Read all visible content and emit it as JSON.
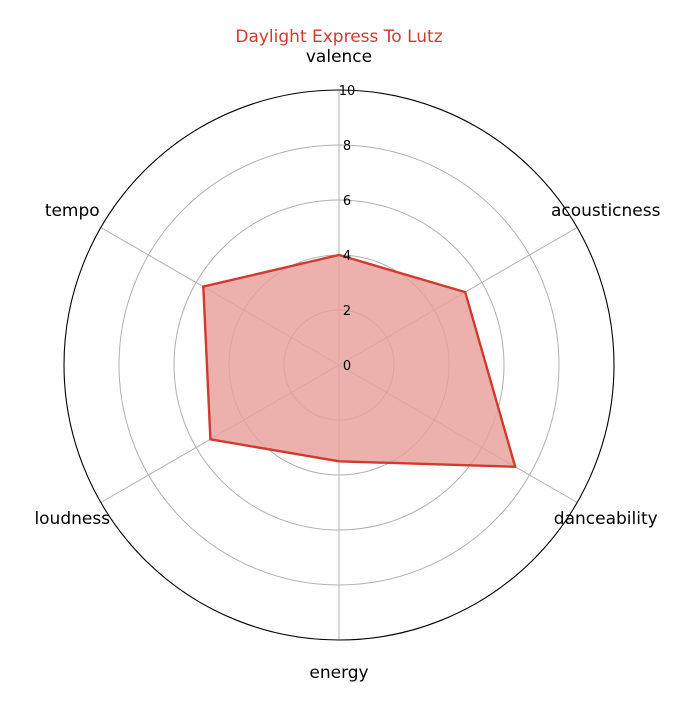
{
  "chart_data": {
    "type": "radar",
    "title": "Daylight Express To Lutz",
    "categories": [
      "valence",
      "acousticness",
      "danceability",
      "energy",
      "loudness",
      "tempo"
    ],
    "series": [
      {
        "values": [
          4.0,
          5.3,
          7.4,
          3.5,
          5.4,
          5.7
        ]
      }
    ],
    "rlim": [
      0,
      10
    ],
    "rticks": [
      "0",
      "2",
      "4",
      "6",
      "8",
      "10"
    ],
    "grid": true,
    "colors": {
      "line": "#d13b2f",
      "fill": "#e8a09a",
      "title": "#d13b2f"
    }
  }
}
